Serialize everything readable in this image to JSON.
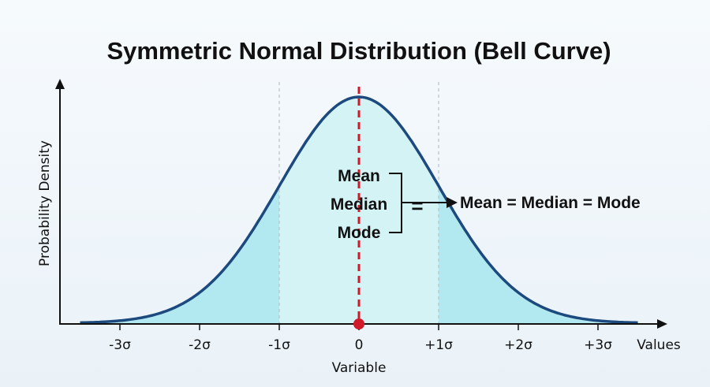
{
  "chart_data": {
    "type": "area",
    "title": "Symmetric Normal Distribution (Bell Curve)",
    "xlabel": "Variable",
    "ylabel": "Probability Density",
    "x_axis_end_label": "Values",
    "distribution": "normal",
    "mean": 0,
    "std": 1,
    "xlim": [
      -3.5,
      3.5
    ],
    "x_ticks": [
      {
        "x": -3,
        "label": "-3σ"
      },
      {
        "x": -2,
        "label": "-2σ"
      },
      {
        "x": -1,
        "label": "-1σ"
      },
      {
        "x": 0,
        "label": "0"
      },
      {
        "x": 1,
        "label": "+1σ"
      },
      {
        "x": 2,
        "label": "+2σ"
      },
      {
        "x": 3,
        "label": "+3σ"
      }
    ],
    "reference_lines": [
      {
        "x": 0,
        "style": "dashed",
        "color": "#d01a2a"
      },
      {
        "x": -1,
        "style": "dotted",
        "color": "#b8c2c8"
      },
      {
        "x": 1,
        "style": "dotted",
        "color": "#b8c2c8"
      }
    ],
    "annotation": {
      "items": [
        "Mean",
        "Median",
        "Mode"
      ],
      "equals_symbol": "=",
      "result_text": "Mean = Median = Mode"
    },
    "grid": false,
    "colors": {
      "curve": "#1d4a7e",
      "fill_outer": "#b2e8ef",
      "fill_inner": "#d4f3f5",
      "mean_line": "#d01a2a",
      "axis": "#111111"
    }
  }
}
